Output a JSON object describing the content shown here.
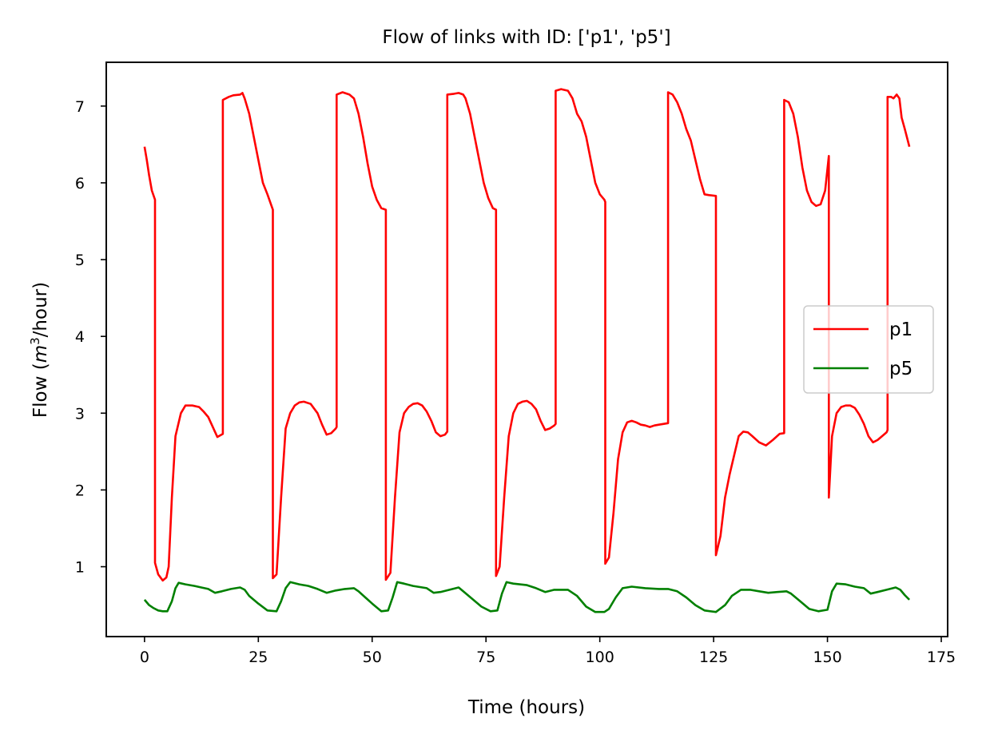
{
  "chart_data": {
    "type": "line",
    "title": "Flow of links with ID: ['p1', 'p5']",
    "xlabel": "Time (hours)",
    "ylabel": "Flow (m³/hour)",
    "ylabel_parts": {
      "prefix": "Flow (",
      "var": "m",
      "sup": "3",
      "suffix": "/hour)"
    },
    "xlim": [
      -8.4,
      176.4
    ],
    "ylim": [
      0.09,
      7.57
    ],
    "xticks": [
      0,
      25,
      50,
      75,
      100,
      125,
      150,
      175
    ],
    "yticks": [
      1,
      2,
      3,
      4,
      5,
      6,
      7
    ],
    "grid": false,
    "legend_position": "center-right",
    "series": [
      {
        "name": "p1",
        "color": "#ff0000",
        "points": [
          [
            0,
            6.47
          ],
          [
            0.5,
            6.3
          ],
          [
            1,
            6.1
          ],
          [
            1.6,
            5.9
          ],
          [
            2.3,
            5.78
          ],
          [
            2.3,
            1.05
          ],
          [
            3,
            0.9
          ],
          [
            4,
            0.82
          ],
          [
            4.8,
            0.86
          ],
          [
            5.3,
            1.0
          ],
          [
            6,
            1.9
          ],
          [
            6.8,
            2.7
          ],
          [
            8,
            3.0
          ],
          [
            9,
            3.1
          ],
          [
            10.5,
            3.1
          ],
          [
            12,
            3.08
          ],
          [
            13,
            3.02
          ],
          [
            14,
            2.95
          ],
          [
            15,
            2.82
          ],
          [
            16,
            2.69
          ],
          [
            17.2,
            2.73
          ],
          [
            17.2,
            7.08
          ],
          [
            18.5,
            7.12
          ],
          [
            19.5,
            7.14
          ],
          [
            21,
            7.15
          ],
          [
            21.5,
            7.17
          ],
          [
            22,
            7.1
          ],
          [
            23,
            6.9
          ],
          [
            24,
            6.6
          ],
          [
            25,
            6.3
          ],
          [
            26,
            6.0
          ],
          [
            27,
            5.85
          ],
          [
            28.2,
            5.65
          ],
          [
            28.2,
            0.85
          ],
          [
            29,
            0.9
          ],
          [
            30,
            1.9
          ],
          [
            31,
            2.8
          ],
          [
            32,
            3.0
          ],
          [
            33,
            3.1
          ],
          [
            34,
            3.14
          ],
          [
            35,
            3.15
          ],
          [
            36.5,
            3.12
          ],
          [
            38,
            3.0
          ],
          [
            39,
            2.85
          ],
          [
            40,
            2.72
          ],
          [
            41,
            2.74
          ],
          [
            42,
            2.8
          ],
          [
            42.2,
            2.82
          ],
          [
            42.2,
            7.15
          ],
          [
            43.5,
            7.18
          ],
          [
            45,
            7.15
          ],
          [
            46,
            7.1
          ],
          [
            47,
            6.9
          ],
          [
            48,
            6.6
          ],
          [
            49,
            6.25
          ],
          [
            50,
            5.95
          ],
          [
            51,
            5.78
          ],
          [
            52,
            5.67
          ],
          [
            53,
            5.65
          ],
          [
            53,
            0.83
          ],
          [
            54,
            0.92
          ],
          [
            55,
            1.9
          ],
          [
            56,
            2.75
          ],
          [
            57,
            3.0
          ],
          [
            58,
            3.08
          ],
          [
            59,
            3.12
          ],
          [
            60,
            3.13
          ],
          [
            61,
            3.1
          ],
          [
            62,
            3.02
          ],
          [
            63,
            2.9
          ],
          [
            64,
            2.75
          ],
          [
            65,
            2.7
          ],
          [
            66,
            2.72
          ],
          [
            66.5,
            2.76
          ],
          [
            66.5,
            7.15
          ],
          [
            68,
            7.16
          ],
          [
            69,
            7.17
          ],
          [
            70,
            7.15
          ],
          [
            70.5,
            7.1
          ],
          [
            71.5,
            6.9
          ],
          [
            72.5,
            6.6
          ],
          [
            73.5,
            6.3
          ],
          [
            74.5,
            6.0
          ],
          [
            75.5,
            5.8
          ],
          [
            76.5,
            5.67
          ],
          [
            77.2,
            5.65
          ],
          [
            77.2,
            0.88
          ],
          [
            78,
            1.0
          ],
          [
            79,
            1.9
          ],
          [
            80,
            2.7
          ],
          [
            81,
            3.0
          ],
          [
            82,
            3.12
          ],
          [
            83,
            3.15
          ],
          [
            84,
            3.16
          ],
          [
            85,
            3.12
          ],
          [
            86,
            3.05
          ],
          [
            87,
            2.9
          ],
          [
            88,
            2.78
          ],
          [
            89,
            2.8
          ],
          [
            90,
            2.84
          ],
          [
            90.3,
            2.86
          ],
          [
            90.3,
            7.2
          ],
          [
            91.5,
            7.22
          ],
          [
            93,
            7.2
          ],
          [
            94,
            7.1
          ],
          [
            95,
            6.9
          ],
          [
            96,
            6.8
          ],
          [
            97,
            6.6
          ],
          [
            98,
            6.3
          ],
          [
            99,
            6.0
          ],
          [
            100,
            5.85
          ],
          [
            101,
            5.78
          ],
          [
            101.2,
            5.75
          ],
          [
            101.2,
            1.04
          ],
          [
            102,
            1.12
          ],
          [
            103,
            1.7
          ],
          [
            104,
            2.4
          ],
          [
            105,
            2.75
          ],
          [
            106,
            2.88
          ],
          [
            107,
            2.9
          ],
          [
            108,
            2.88
          ],
          [
            109,
            2.85
          ],
          [
            110,
            2.84
          ],
          [
            111,
            2.82
          ],
          [
            112,
            2.84
          ],
          [
            113,
            2.85
          ],
          [
            115,
            2.87
          ],
          [
            115,
            7.18
          ],
          [
            116,
            7.15
          ],
          [
            117,
            7.05
          ],
          [
            118,
            6.9
          ],
          [
            119,
            6.7
          ],
          [
            120,
            6.55
          ],
          [
            121,
            6.3
          ],
          [
            122,
            6.05
          ],
          [
            123,
            5.85
          ],
          [
            124,
            5.84
          ],
          [
            125.5,
            5.83
          ],
          [
            125.5,
            1.15
          ],
          [
            126.5,
            1.4
          ],
          [
            127.5,
            1.9
          ],
          [
            128.5,
            2.2
          ],
          [
            129.5,
            2.45
          ],
          [
            130.5,
            2.7
          ],
          [
            131.5,
            2.76
          ],
          [
            132.5,
            2.75
          ],
          [
            133.5,
            2.7
          ],
          [
            135,
            2.62
          ],
          [
            136.5,
            2.58
          ],
          [
            138,
            2.65
          ],
          [
            139.5,
            2.73
          ],
          [
            140.5,
            2.74
          ],
          [
            140.5,
            7.08
          ],
          [
            141.5,
            7.05
          ],
          [
            142.5,
            6.9
          ],
          [
            143.5,
            6.6
          ],
          [
            144.5,
            6.2
          ],
          [
            145.5,
            5.9
          ],
          [
            146.5,
            5.75
          ],
          [
            147.5,
            5.7
          ],
          [
            148.5,
            5.72
          ],
          [
            149.5,
            5.9
          ],
          [
            150.3,
            6.35
          ],
          [
            150.3,
            1.9
          ],
          [
            151,
            2.7
          ],
          [
            152,
            3.0
          ],
          [
            153,
            3.08
          ],
          [
            154,
            3.1
          ],
          [
            155,
            3.1
          ],
          [
            156,
            3.07
          ],
          [
            157,
            2.98
          ],
          [
            158,
            2.86
          ],
          [
            159,
            2.7
          ],
          [
            160,
            2.62
          ],
          [
            161,
            2.65
          ],
          [
            162,
            2.7
          ],
          [
            163,
            2.75
          ],
          [
            163.2,
            2.78
          ],
          [
            163.2,
            7.12
          ],
          [
            164,
            7.12
          ],
          [
            164.5,
            7.1
          ],
          [
            165.2,
            7.15
          ],
          [
            165.8,
            7.1
          ],
          [
            166.3,
            6.85
          ],
          [
            167,
            6.7
          ],
          [
            168,
            6.47
          ]
        ]
      },
      {
        "name": "p5",
        "color": "#008000",
        "points": [
          [
            0,
            0.57
          ],
          [
            1,
            0.5
          ],
          [
            2,
            0.46
          ],
          [
            3,
            0.43
          ],
          [
            4,
            0.42
          ],
          [
            5,
            0.42
          ],
          [
            6,
            0.55
          ],
          [
            6.8,
            0.72
          ],
          [
            7.5,
            0.79
          ],
          [
            9,
            0.77
          ],
          [
            11,
            0.75
          ],
          [
            14,
            0.71
          ],
          [
            15.5,
            0.66
          ],
          [
            17,
            0.68
          ],
          [
            19,
            0.71
          ],
          [
            21,
            0.73
          ],
          [
            22,
            0.7
          ],
          [
            23,
            0.62
          ],
          [
            25,
            0.52
          ],
          [
            27,
            0.43
          ],
          [
            29,
            0.42
          ],
          [
            30,
            0.55
          ],
          [
            31,
            0.72
          ],
          [
            32,
            0.8
          ],
          [
            34,
            0.77
          ],
          [
            36,
            0.75
          ],
          [
            38,
            0.71
          ],
          [
            40,
            0.66
          ],
          [
            42,
            0.69
          ],
          [
            44,
            0.71
          ],
          [
            46,
            0.72
          ],
          [
            47,
            0.68
          ],
          [
            48.5,
            0.6
          ],
          [
            50,
            0.52
          ],
          [
            52,
            0.42
          ],
          [
            53.5,
            0.43
          ],
          [
            54.5,
            0.6
          ],
          [
            55.5,
            0.8
          ],
          [
            57,
            0.78
          ],
          [
            59,
            0.75
          ],
          [
            62,
            0.72
          ],
          [
            63.5,
            0.66
          ],
          [
            65,
            0.67
          ],
          [
            67,
            0.7
          ],
          [
            69,
            0.73
          ],
          [
            70,
            0.68
          ],
          [
            72,
            0.58
          ],
          [
            74,
            0.48
          ],
          [
            76,
            0.42
          ],
          [
            77.5,
            0.43
          ],
          [
            78.5,
            0.65
          ],
          [
            79.5,
            0.8
          ],
          [
            81,
            0.78
          ],
          [
            84,
            0.76
          ],
          [
            86,
            0.72
          ],
          [
            88,
            0.67
          ],
          [
            90,
            0.7
          ],
          [
            93,
            0.7
          ],
          [
            95,
            0.62
          ],
          [
            97,
            0.48
          ],
          [
            99,
            0.41
          ],
          [
            101,
            0.41
          ],
          [
            102,
            0.45
          ],
          [
            103.5,
            0.6
          ],
          [
            105,
            0.72
          ],
          [
            107,
            0.74
          ],
          [
            110,
            0.72
          ],
          [
            113,
            0.71
          ],
          [
            115,
            0.71
          ],
          [
            117,
            0.68
          ],
          [
            119,
            0.6
          ],
          [
            121,
            0.5
          ],
          [
            123,
            0.43
          ],
          [
            125.5,
            0.41
          ],
          [
            127.5,
            0.5
          ],
          [
            129,
            0.62
          ],
          [
            131,
            0.7
          ],
          [
            133,
            0.7
          ],
          [
            135,
            0.68
          ],
          [
            137,
            0.66
          ],
          [
            139,
            0.67
          ],
          [
            141,
            0.68
          ],
          [
            142,
            0.65
          ],
          [
            144,
            0.55
          ],
          [
            146,
            0.45
          ],
          [
            148,
            0.42
          ],
          [
            150,
            0.44
          ],
          [
            151,
            0.68
          ],
          [
            152,
            0.78
          ],
          [
            154,
            0.77
          ],
          [
            156,
            0.74
          ],
          [
            158,
            0.72
          ],
          [
            159.5,
            0.65
          ],
          [
            161,
            0.67
          ],
          [
            163,
            0.7
          ],
          [
            165,
            0.73
          ],
          [
            166,
            0.7
          ],
          [
            167,
            0.63
          ],
          [
            168,
            0.57
          ]
        ]
      }
    ]
  }
}
